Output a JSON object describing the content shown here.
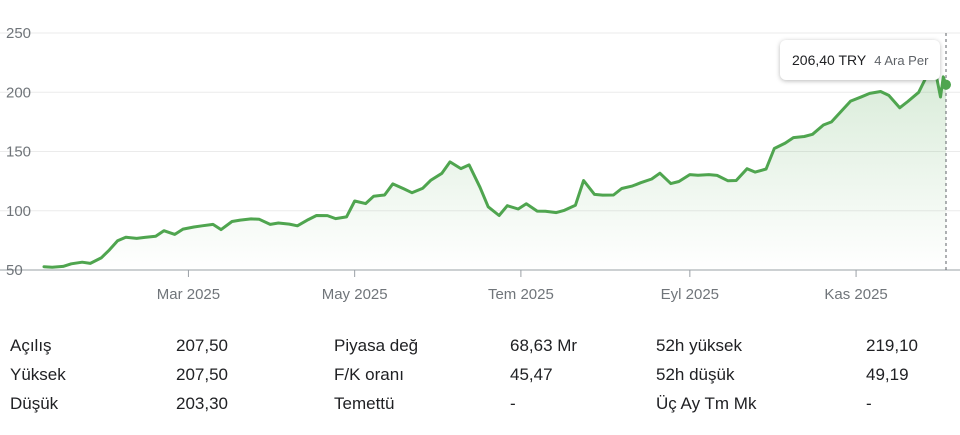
{
  "chart_data": {
    "type": "area",
    "currency": "TRY",
    "yticks": [
      50,
      100,
      150,
      200,
      250
    ],
    "ylim": [
      50,
      250
    ],
    "xlim": [
      "2025-01-07",
      "2025-12-04"
    ],
    "xticks": [
      {
        "label": "Mar 2025",
        "date": "2025-03-01"
      },
      {
        "label": "May 2025",
        "date": "2025-05-01"
      },
      {
        "label": "Tem 2025",
        "date": "2025-07-01"
      },
      {
        "label": "Eyl 2025",
        "date": "2025-09-01"
      },
      {
        "label": "Kas 2025",
        "date": "2025-11-01"
      }
    ],
    "series": [
      {
        "color": "#4fa54f",
        "points": [
          [
            "2025-01-07",
            52.8
          ],
          [
            "2025-01-10",
            52.3
          ],
          [
            "2025-01-14",
            53.0
          ],
          [
            "2025-01-17",
            55.2
          ],
          [
            "2025-01-21",
            56.6
          ],
          [
            "2025-01-24",
            55.6
          ],
          [
            "2025-01-28",
            60.2
          ],
          [
            "2025-01-31",
            67.0
          ],
          [
            "2025-02-03",
            74.6
          ],
          [
            "2025-02-06",
            77.7
          ],
          [
            "2025-02-10",
            76.7
          ],
          [
            "2025-02-13",
            77.5
          ],
          [
            "2025-02-17",
            78.4
          ],
          [
            "2025-02-20",
            83.2
          ],
          [
            "2025-02-24",
            80.0
          ],
          [
            "2025-02-27",
            84.5
          ],
          [
            "2025-03-03",
            86.3
          ],
          [
            "2025-03-06",
            87.3
          ],
          [
            "2025-03-10",
            88.5
          ],
          [
            "2025-03-13",
            84.1
          ],
          [
            "2025-03-17",
            90.9
          ],
          [
            "2025-03-20",
            92.1
          ],
          [
            "2025-03-24",
            93.1
          ],
          [
            "2025-03-27",
            92.8
          ],
          [
            "2025-03-31",
            88.5
          ],
          [
            "2025-04-03",
            89.7
          ],
          [
            "2025-04-07",
            88.7
          ],
          [
            "2025-04-10",
            87.3
          ],
          [
            "2025-04-14",
            92.5
          ],
          [
            "2025-04-17",
            96.0
          ],
          [
            "2025-04-21",
            95.9
          ],
          [
            "2025-04-24",
            93.4
          ],
          [
            "2025-04-28",
            94.8
          ],
          [
            "2025-05-01",
            108.2
          ],
          [
            "2025-05-05",
            106.0
          ],
          [
            "2025-05-08",
            112.3
          ],
          [
            "2025-05-12",
            113.3
          ],
          [
            "2025-05-15",
            122.7
          ],
          [
            "2025-05-19",
            118.5
          ],
          [
            "2025-05-22",
            115.2
          ],
          [
            "2025-05-26",
            119.0
          ],
          [
            "2025-05-29",
            125.9
          ],
          [
            "2025-06-02",
            131.6
          ],
          [
            "2025-06-05",
            141.2
          ],
          [
            "2025-06-09",
            135.6
          ],
          [
            "2025-06-12",
            138.7
          ],
          [
            "2025-06-16",
            119.8
          ],
          [
            "2025-06-19",
            103.3
          ],
          [
            "2025-06-23",
            96.0
          ],
          [
            "2025-06-26",
            104.3
          ],
          [
            "2025-06-30",
            101.5
          ],
          [
            "2025-07-03",
            105.9
          ],
          [
            "2025-07-07",
            99.7
          ],
          [
            "2025-07-10",
            99.5
          ],
          [
            "2025-07-14",
            98.4
          ],
          [
            "2025-07-17",
            100.4
          ],
          [
            "2025-07-21",
            104.6
          ],
          [
            "2025-07-24",
            125.5
          ],
          [
            "2025-07-28",
            113.8
          ],
          [
            "2025-07-31",
            113.2
          ],
          [
            "2025-08-04",
            113.3
          ],
          [
            "2025-08-07",
            118.8
          ],
          [
            "2025-08-11",
            121.0
          ],
          [
            "2025-08-14",
            123.7
          ],
          [
            "2025-08-18",
            126.8
          ],
          [
            "2025-08-21",
            131.7
          ],
          [
            "2025-08-25",
            122.9
          ],
          [
            "2025-08-28",
            124.7
          ],
          [
            "2025-09-01",
            130.5
          ],
          [
            "2025-09-04",
            130.0
          ],
          [
            "2025-09-08",
            130.5
          ],
          [
            "2025-09-11",
            129.8
          ],
          [
            "2025-09-15",
            125.3
          ],
          [
            "2025-09-18",
            125.5
          ],
          [
            "2025-09-22",
            135.5
          ],
          [
            "2025-09-25",
            132.6
          ],
          [
            "2025-09-29",
            135.2
          ],
          [
            "2025-10-02",
            152.5
          ],
          [
            "2025-10-06",
            157.1
          ],
          [
            "2025-10-09",
            161.7
          ],
          [
            "2025-10-13",
            162.7
          ],
          [
            "2025-10-16",
            164.5
          ],
          [
            "2025-10-20",
            172.4
          ],
          [
            "2025-10-23",
            175.0
          ],
          [
            "2025-10-27",
            185.0
          ],
          [
            "2025-10-30",
            192.5
          ],
          [
            "2025-11-03",
            196.2
          ],
          [
            "2025-11-06",
            199.0
          ],
          [
            "2025-11-10",
            200.6
          ],
          [
            "2025-11-13",
            197.3
          ],
          [
            "2025-11-17",
            186.9
          ],
          [
            "2025-11-20",
            192.2
          ],
          [
            "2025-11-24",
            200.0
          ],
          [
            "2025-11-27",
            214.0
          ],
          [
            "2025-11-30",
            219.0
          ],
          [
            "2025-12-02",
            196.0
          ],
          [
            "2025-12-03",
            213.0
          ],
          [
            "2025-12-04",
            206.4
          ]
        ]
      }
    ]
  },
  "tooltip": {
    "price": "206,40 TRY",
    "date": "4 Ara Per"
  },
  "stats": {
    "rows": [
      [
        [
          "Açılış",
          "207,50"
        ],
        [
          "Piyasa değ",
          "68,63 Mr"
        ],
        [
          "52h yüksek",
          "219,10"
        ]
      ],
      [
        [
          "Yüksek",
          "207,50"
        ],
        [
          "F/K oranı",
          "45,47"
        ],
        [
          "52h düşük",
          "49,19"
        ]
      ],
      [
        [
          "Düşük",
          "203,30"
        ],
        [
          "Temettü",
          "-"
        ],
        [
          "Üç Ay Tm Mk",
          "-"
        ]
      ]
    ]
  }
}
